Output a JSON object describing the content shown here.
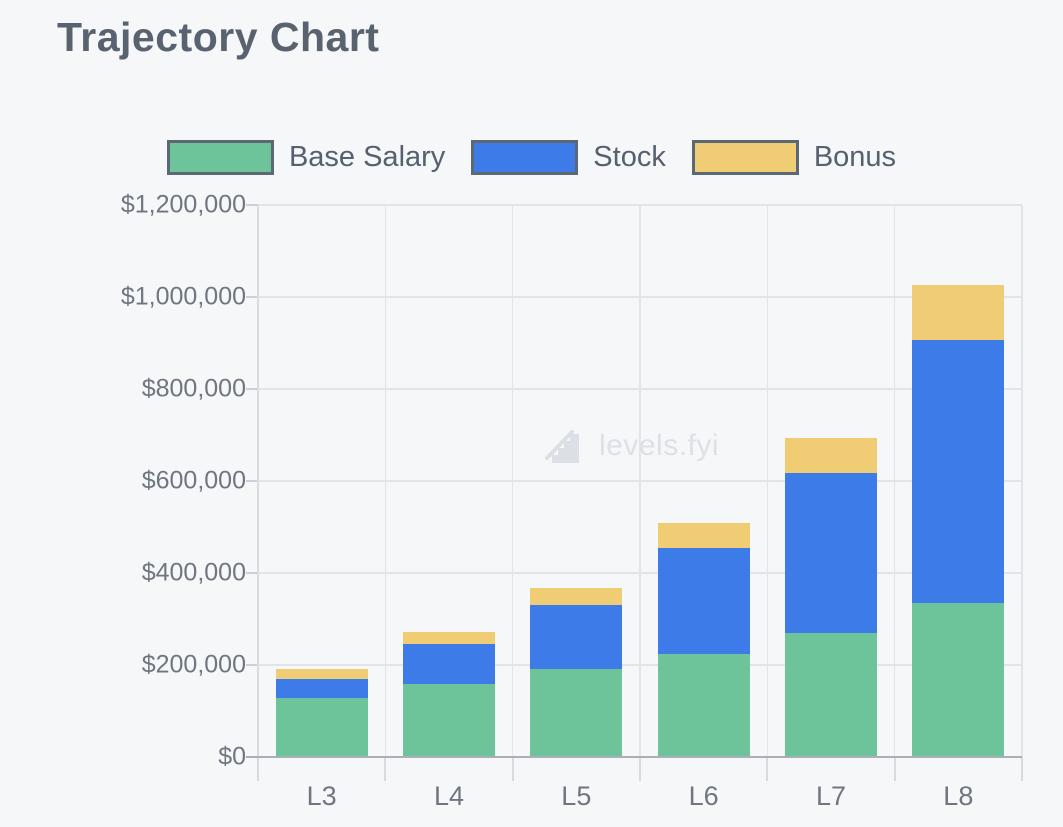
{
  "page": {
    "background": "#f6f7f9"
  },
  "header": {
    "title": "Trajectory Chart"
  },
  "legend": {
    "items": [
      {
        "label": "Base Salary",
        "color": "#6ec49a"
      },
      {
        "label": "Stock",
        "color": "#3d7ce8"
      },
      {
        "label": "Bonus",
        "color": "#f0cd74"
      }
    ]
  },
  "watermark": {
    "text": "levels.fyi"
  },
  "chart_data": {
    "type": "bar",
    "stacked": true,
    "title": "Trajectory Chart",
    "xlabel": "",
    "ylabel": "",
    "categories": [
      "L3",
      "L4",
      "L5",
      "L6",
      "L7",
      "L8"
    ],
    "series": [
      {
        "name": "Base Salary",
        "color": "#6ec49a",
        "values": [
          128000,
          158000,
          192000,
          225000,
          269000,
          334000
        ]
      },
      {
        "name": "Stock",
        "color": "#3d7ce8",
        "values": [
          41000,
          87000,
          139000,
          230000,
          348000,
          572000
        ]
      },
      {
        "name": "Bonus",
        "color": "#f0cd74",
        "values": [
          22000,
          26000,
          36000,
          53000,
          76000,
          120000
        ]
      }
    ],
    "stack_totals": [
      191000,
      271000,
      367000,
      508000,
      693000,
      1026000
    ],
    "ylim": [
      0,
      1200000
    ],
    "y_ticks": [
      {
        "value": 0,
        "label": "$0"
      },
      {
        "value": 200000,
        "label": "$200,000"
      },
      {
        "value": 400000,
        "label": "$400,000"
      },
      {
        "value": 600000,
        "label": "$600,000"
      },
      {
        "value": 800000,
        "label": "$800,000"
      },
      {
        "value": 1000000,
        "label": "$1,000,000"
      },
      {
        "value": 1200000,
        "label": "$1,200,000"
      }
    ],
    "grid": true,
    "legend_position": "top"
  }
}
